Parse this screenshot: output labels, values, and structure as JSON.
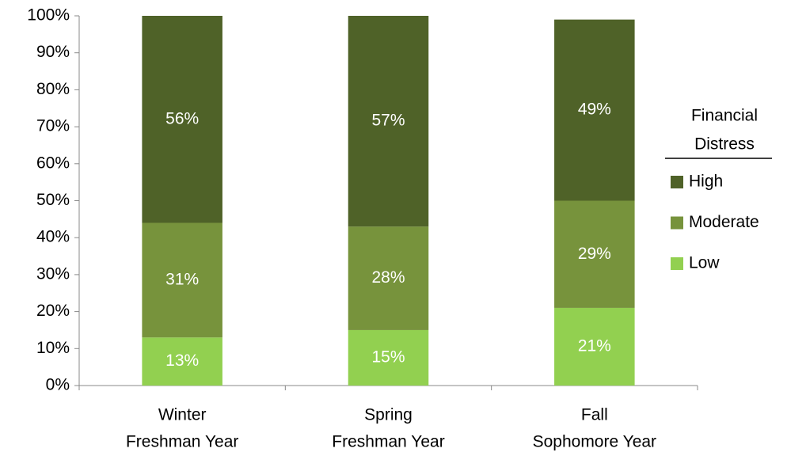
{
  "chart_data": {
    "type": "stacked_bar",
    "categories": [
      [
        "Winter",
        "Freshman Year"
      ],
      [
        "Spring",
        "Freshman Year"
      ],
      [
        "Fall",
        "Sophomore Year"
      ]
    ],
    "series": [
      {
        "name": "Low",
        "color": "#92d050",
        "values": [
          13,
          15,
          21
        ],
        "value_labels": [
          "13%",
          "15%",
          "21%"
        ]
      },
      {
        "name": "Moderate",
        "color": "#77933c",
        "values": [
          31,
          28,
          29
        ],
        "value_labels": [
          "31%",
          "28%",
          "29%"
        ]
      },
      {
        "name": "High",
        "color": "#4f6228",
        "values": [
          56,
          57,
          49
        ],
        "value_labels": [
          "56%",
          "57%",
          "49%"
        ]
      }
    ],
    "legend_title": [
      "Financial",
      "Distress"
    ],
    "legend_position": "right",
    "ylim": [
      0,
      100
    ],
    "yticks": [
      {
        "value": 0,
        "label": "0%"
      },
      {
        "value": 10,
        "label": "10%"
      },
      {
        "value": 20,
        "label": "20%"
      },
      {
        "value": 30,
        "label": "30%"
      },
      {
        "value": 40,
        "label": "40%"
      },
      {
        "value": 50,
        "label": "50%"
      },
      {
        "value": 60,
        "label": "60%"
      },
      {
        "value": 70,
        "label": "70%"
      },
      {
        "value": 80,
        "label": "80%"
      },
      {
        "value": 90,
        "label": "90%"
      },
      {
        "value": 100,
        "label": "100%"
      }
    ]
  }
}
